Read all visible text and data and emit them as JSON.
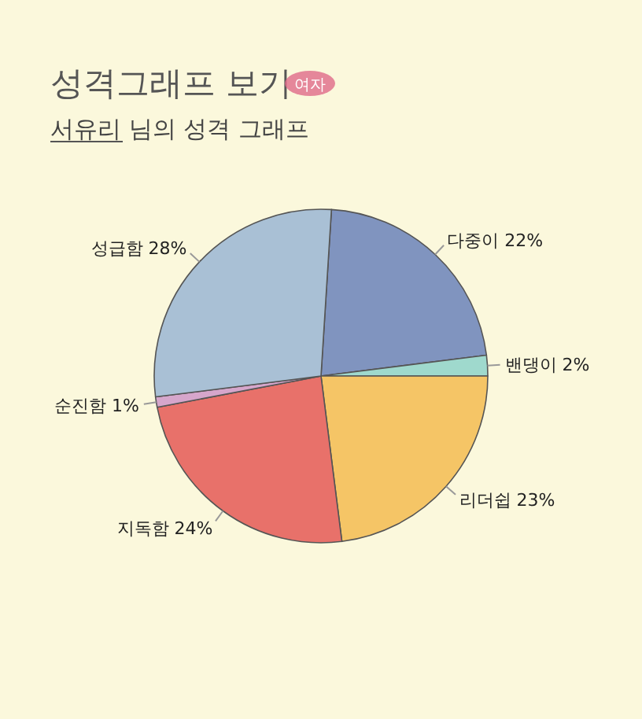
{
  "chart_data": {
    "type": "pie",
    "title": "성격그래프 보기",
    "subtitle": "서유리 님의 성격 그래프",
    "annotations": [
      "여자"
    ],
    "categories": [
      "다중이",
      "밴댕이",
      "리더쉽",
      "지독함",
      "순진함",
      "성급함"
    ],
    "values": [
      22,
      2,
      23,
      24,
      1,
      28
    ],
    "colors": [
      "#8094bf",
      "#9fd9cd",
      "#f5c566",
      "#e8716a",
      "#d6a6cb",
      "#a9c0d5"
    ],
    "value_labels": [
      "22%",
      "2%",
      "23%",
      "24%",
      "1%",
      "28%"
    ],
    "legend": false
  }
}
